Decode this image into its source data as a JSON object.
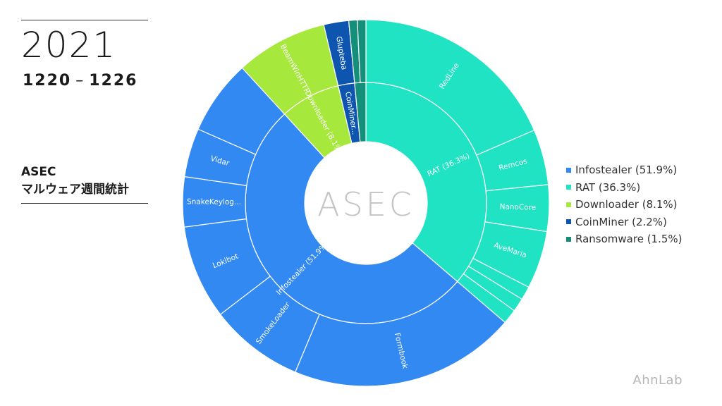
{
  "header": {
    "year": "2021",
    "range_start": "1220",
    "range_sep": "–",
    "range_end": "1226",
    "subtitle_line1": "ASEC",
    "subtitle_line2": "マルウェア週間統計"
  },
  "center_logo": "ASEC",
  "brand": "AhnLab",
  "chart_data": {
    "type": "sunburst",
    "legend_position": "right",
    "categories": [
      {
        "name": "RAT",
        "label": "RAT (36.3%)",
        "legend": "RAT (36.3%)",
        "value": 36.3,
        "color": "#1fe3c2",
        "children": [
          {
            "name": "RedLine",
            "value": 18.5
          },
          {
            "name": "Remcos",
            "value": 4.9
          },
          {
            "name": "NanoCore",
            "value": 4.1
          },
          {
            "name": "AveMaria",
            "value": 5.1
          },
          {
            "name": "",
            "value": 1.2
          },
          {
            "name": "",
            "value": 1.2
          },
          {
            "name": "",
            "value": 1.3
          }
        ]
      },
      {
        "name": "Infostealer",
        "label": "Infostealer (51.9%)",
        "legend": "Infostealer (51.9%)",
        "value": 51.9,
        "color": "#3389f2",
        "children": [
          {
            "name": "Formbook",
            "value": 20.0
          },
          {
            "name": "SmokeLoader",
            "value": 8.3
          },
          {
            "name": "Lokibot",
            "value": 8.3
          },
          {
            "name": "SnakeKeylog...",
            "value": 4.4
          },
          {
            "name": "Vidar",
            "value": 4.3
          },
          {
            "name": "",
            "value": 6.6
          }
        ]
      },
      {
        "name": "Downloader",
        "label": "Downloader (8.1%)",
        "legend": "Downloader (8.1%)",
        "value": 8.1,
        "color": "#a6e83c",
        "children": [
          {
            "name": "BeamWinHTTP",
            "value": 8.1
          }
        ]
      },
      {
        "name": "CoinMiner",
        "label": "CoinMiner...",
        "legend": "CoinMiner (2.2%)",
        "value": 2.2,
        "color": "#0e55b0",
        "children": [
          {
            "name": "Glupteba",
            "value": 2.2
          }
        ]
      },
      {
        "name": "Ransomware",
        "label": "",
        "legend": "Ransomware (1.5%)",
        "value": 1.5,
        "color": "#14907a",
        "children": [
          {
            "name": "",
            "value": 0.75
          },
          {
            "name": "",
            "value": 0.75
          }
        ]
      }
    ]
  }
}
